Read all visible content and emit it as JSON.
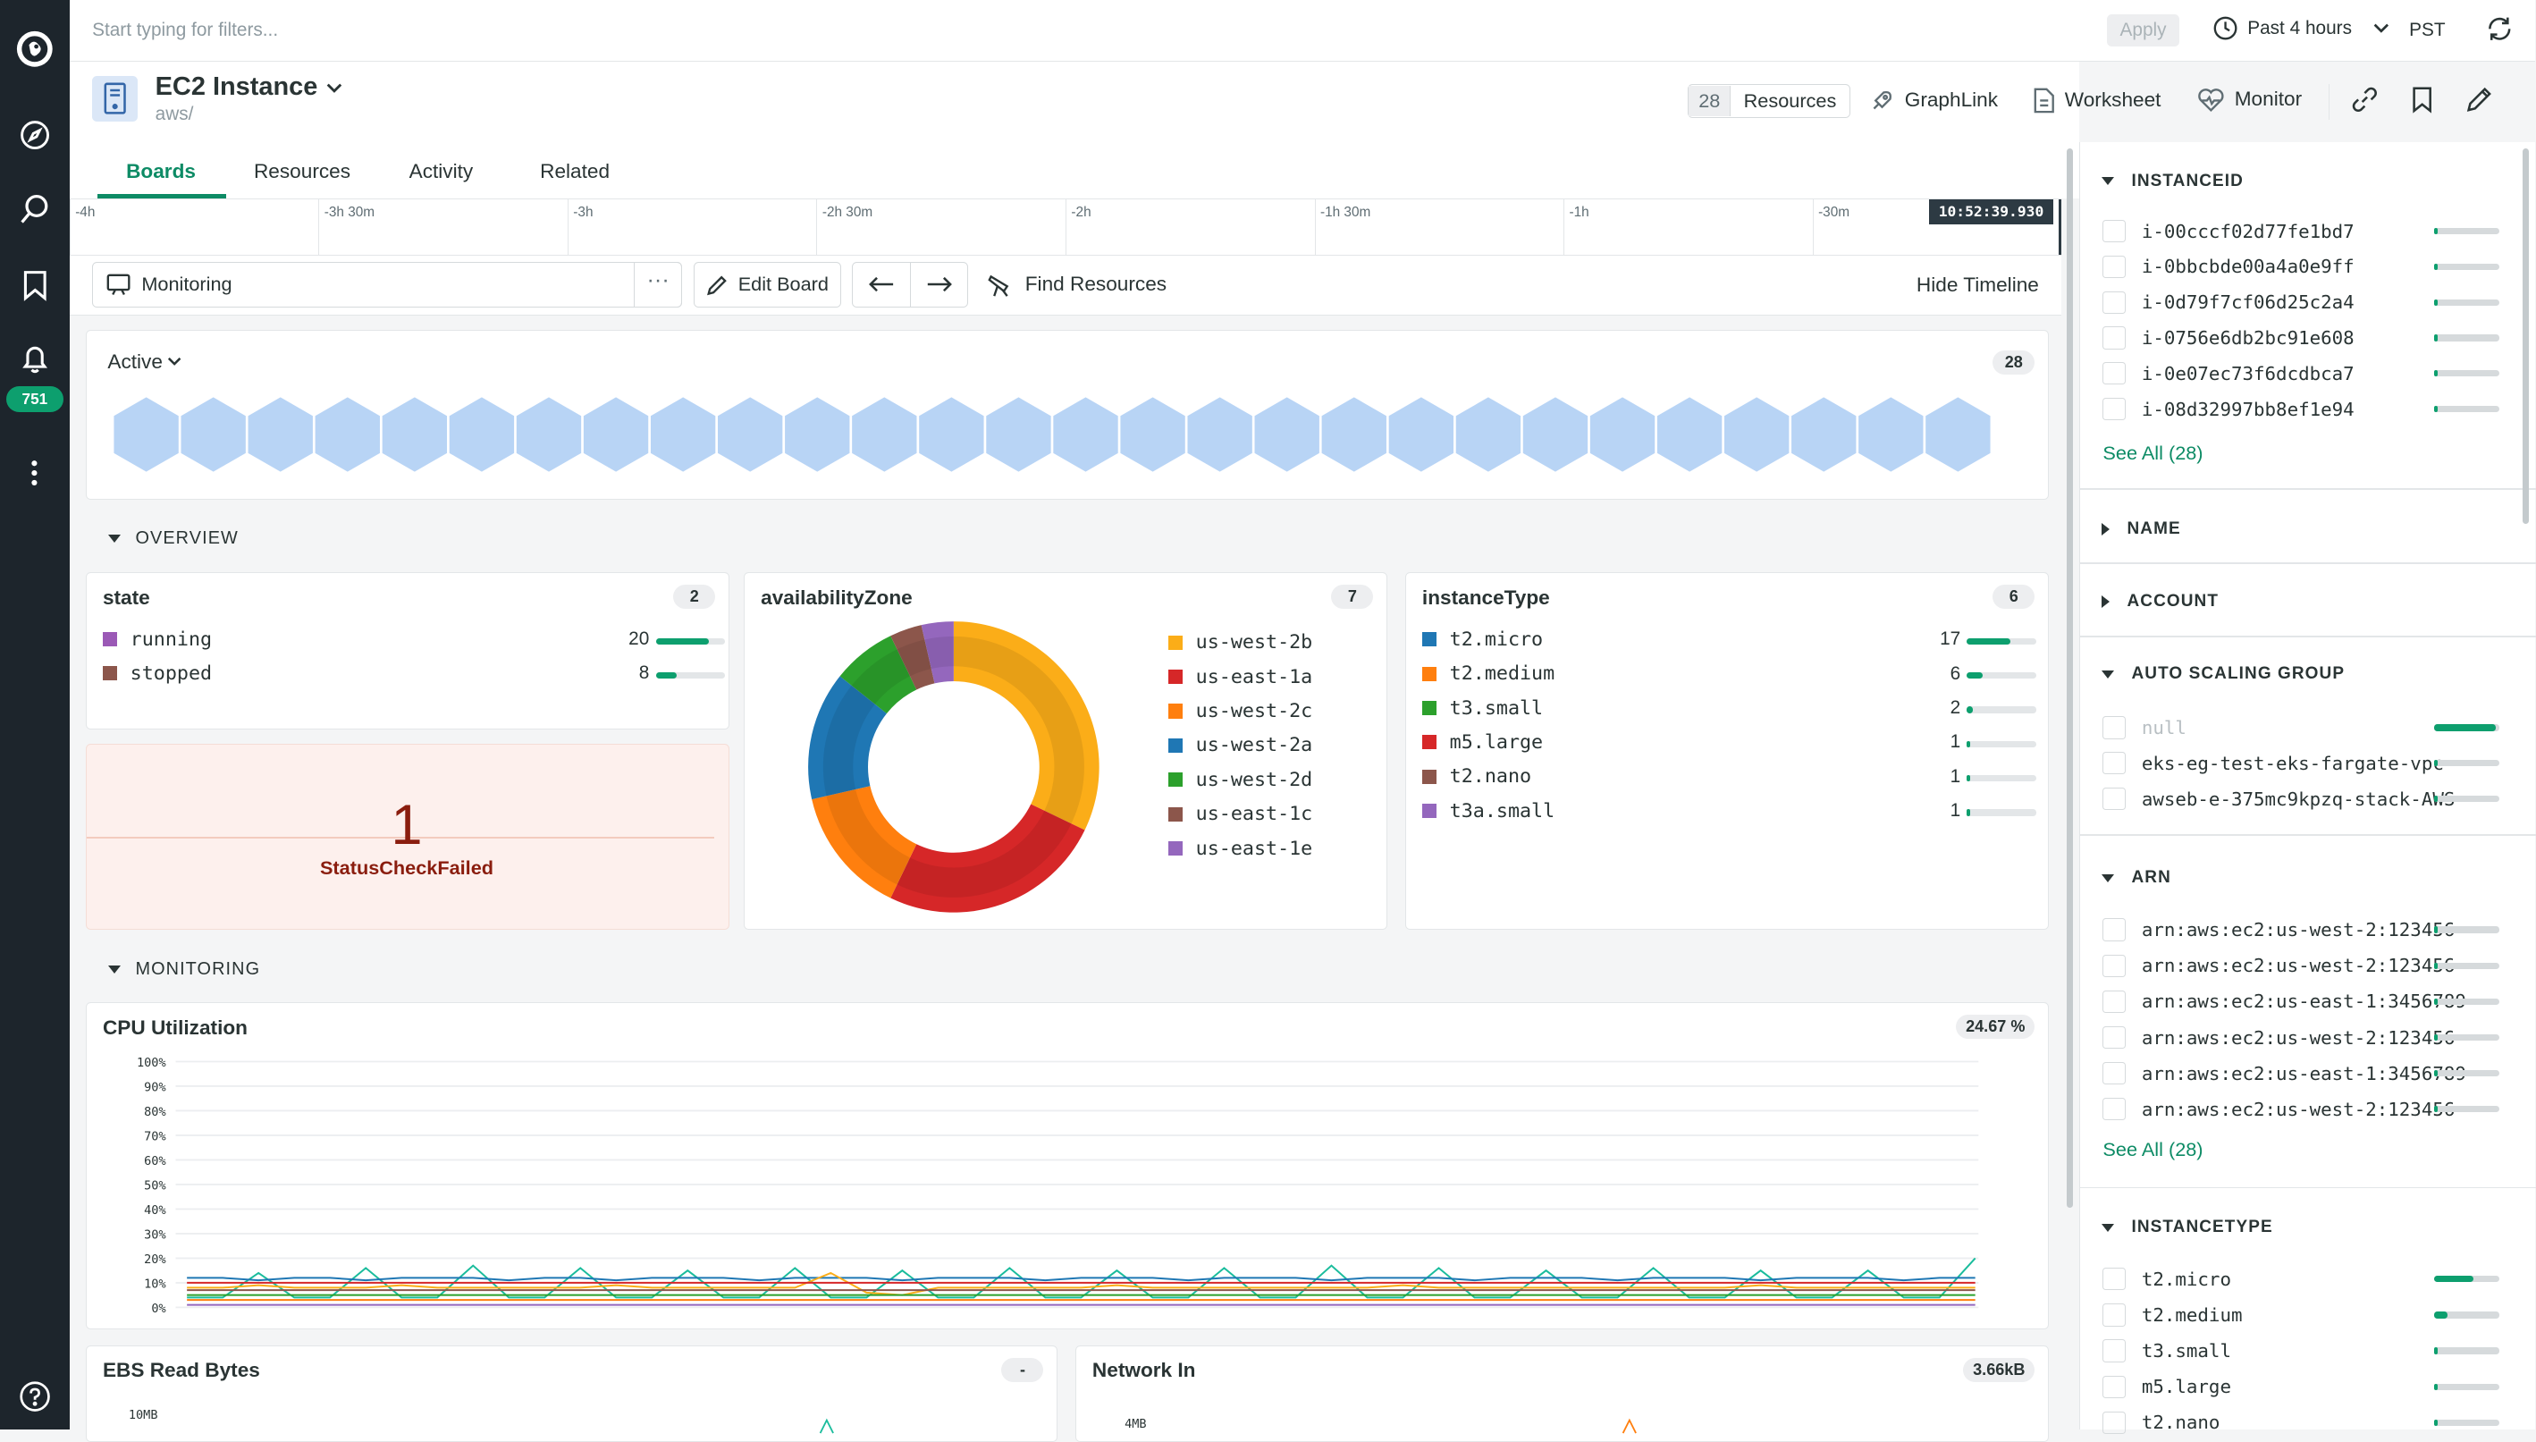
{
  "app": {
    "badge_count": "751",
    "colors": {
      "accent": "#0d8b65",
      "nav_bg": "#1d252c",
      "status_failed_bg": "#fdf0ed",
      "status_failed_text": "#8a1d0e"
    }
  },
  "topbar": {
    "filter_placeholder": "Start typing for filters...",
    "apply": "Apply",
    "time_range": "Past 4 hours",
    "timezone": "PST"
  },
  "entity": {
    "title": "EC2 Instance",
    "subtitle": "aws/",
    "resources_count": "28",
    "resources_label": "Resources",
    "graphlink": "GraphLink",
    "worksheet": "Worksheet",
    "monitor": "Monitor"
  },
  "tabs": [
    "Boards",
    "Resources",
    "Activity",
    "Related"
  ],
  "timeline": {
    "ticks": [
      "-4h",
      "-3h 30m",
      "-3h",
      "-2h 30m",
      "-2h",
      "-1h 30m",
      "-1h",
      "-30m"
    ],
    "now": "10:52:39.930"
  },
  "toolbar": {
    "board": "Monitoring",
    "edit": "Edit Board",
    "find": "Find Resources",
    "hide_timeline": "Hide Timeline"
  },
  "active": {
    "label": "Active",
    "count": "28",
    "hex_count": 28
  },
  "overview": {
    "label": "OVERVIEW",
    "state": {
      "title": "state",
      "count": "2",
      "items": [
        {
          "name": "running",
          "value": "20",
          "frac": 0.77,
          "color": "#9b59b6"
        },
        {
          "name": "stopped",
          "value": "8",
          "frac": 0.3,
          "color": "#8c564b"
        }
      ]
    },
    "status": {
      "value": "1",
      "label": "StatusCheckFailed"
    },
    "az": {
      "title": "availabilityZone",
      "count": "7",
      "items": [
        {
          "name": "us-west-2b",
          "color": "#fbad18"
        },
        {
          "name": "us-east-1a",
          "color": "#d62728"
        },
        {
          "name": "us-west-2c",
          "color": "#ff7f0e"
        },
        {
          "name": "us-west-2a",
          "color": "#1f77b4"
        },
        {
          "name": "us-west-2d",
          "color": "#2ca02c"
        },
        {
          "name": "us-east-1c",
          "color": "#8c564b"
        },
        {
          "name": "us-east-1e",
          "color": "#9467bd"
        }
      ]
    },
    "itype": {
      "title": "instanceType",
      "count": "6",
      "items": [
        {
          "name": "t2.micro",
          "value": "17",
          "frac": 0.62,
          "color": "#1f77b4"
        },
        {
          "name": "t2.medium",
          "value": "6",
          "frac": 0.22,
          "color": "#ff7f0e"
        },
        {
          "name": "t3.small",
          "value": "2",
          "frac": 0.08,
          "color": "#2ca02c"
        },
        {
          "name": "m5.large",
          "value": "1",
          "frac": 0.04,
          "color": "#d62728"
        },
        {
          "name": "t2.nano",
          "value": "1",
          "frac": 0.04,
          "color": "#8c564b"
        },
        {
          "name": "t3a.small",
          "value": "1",
          "frac": 0.04,
          "color": "#9467bd"
        }
      ]
    }
  },
  "monitoring": {
    "label": "MONITORING",
    "cpu": {
      "title": "CPU Utilization",
      "value": "24.67 %",
      "yticks": [
        "100%",
        "90%",
        "80%",
        "70%",
        "60%",
        "50%",
        "40%",
        "30%",
        "20%",
        "10%",
        "0%"
      ]
    },
    "ebs": {
      "title": "EBS Read Bytes",
      "value": "-",
      "ytick": "10MB"
    },
    "net": {
      "title": "Network In",
      "value": "3.66kB",
      "ytick": "4MB"
    }
  },
  "chart_data": [
    {
      "type": "pie",
      "title": "availabilityZone",
      "labels": [
        "us-west-2b",
        "us-east-1a",
        "us-west-2c",
        "us-west-2a",
        "us-west-2d",
        "us-east-1c",
        "us-east-1e"
      ],
      "values": [
        9,
        7,
        4,
        4,
        2,
        1,
        1
      ],
      "legend": "right"
    },
    {
      "type": "line",
      "title": "CPU Utilization",
      "ylim": [
        0,
        100
      ],
      "yunit": "%",
      "grid": true,
      "series": [
        {
          "values": [
            4,
            4,
            14,
            4,
            4,
            16,
            4,
            4,
            17,
            4,
            4,
            16,
            4,
            4,
            15,
            4,
            4,
            16,
            4,
            4,
            15,
            4,
            4,
            16,
            4,
            4,
            15,
            4,
            4,
            16,
            4,
            4,
            17,
            4,
            4,
            16,
            4,
            4,
            15,
            4,
            4,
            16,
            4,
            4,
            15,
            4,
            4,
            15,
            4,
            4,
            20
          ],
          "color": "#1abc9c"
        },
        {
          "values": [
            12,
            12,
            11,
            12,
            12,
            11,
            12,
            12,
            12,
            11,
            12,
            12,
            11,
            12,
            12,
            12,
            11,
            12,
            12,
            12,
            11,
            12,
            12,
            12,
            11,
            12,
            12,
            12,
            11,
            12,
            12,
            12,
            11,
            12,
            12,
            12,
            11,
            12,
            12,
            12,
            11,
            12,
            12,
            12,
            11,
            12,
            12,
            12,
            11,
            12,
            12
          ],
          "color": "#1f77b4"
        },
        {
          "values": [
            8,
            8,
            9,
            8,
            8,
            8,
            9,
            8,
            8,
            8,
            8,
            8,
            9,
            8,
            8,
            8,
            8,
            8,
            14,
            6,
            5,
            8,
            8,
            8,
            8,
            8,
            9,
            8,
            8,
            8,
            8,
            8,
            8,
            8,
            9,
            8,
            8,
            8,
            8,
            8,
            8,
            8,
            8,
            8,
            9,
            8,
            8,
            8,
            8,
            8,
            8
          ],
          "color": "#fbad18"
        },
        {
          "values": [
            10,
            10,
            10,
            10,
            10,
            10,
            10,
            10,
            10,
            10,
            10,
            10,
            10,
            10,
            10,
            10,
            10,
            10,
            10,
            10,
            10,
            10,
            10,
            10,
            10,
            10,
            10,
            10,
            10,
            10,
            10,
            10,
            10,
            10,
            10,
            10,
            10,
            10,
            10,
            10,
            10,
            10,
            10,
            10,
            10,
            10,
            10,
            10,
            10,
            10,
            10
          ],
          "color": "#d62728"
        },
        {
          "values": [
            7,
            7,
            7,
            7,
            7,
            7,
            7,
            7,
            7,
            7,
            7,
            7,
            7,
            7,
            7,
            7,
            7,
            7,
            7,
            7,
            7,
            7,
            7,
            7,
            7,
            7,
            7,
            7,
            7,
            7,
            7,
            7,
            7,
            7,
            7,
            7,
            7,
            7,
            7,
            7,
            7,
            7,
            7,
            7,
            7,
            7,
            7,
            7,
            7,
            7,
            7
          ],
          "color": "#8c564b"
        },
        {
          "values": [
            5,
            5,
            5,
            5,
            5,
            5,
            5,
            5,
            5,
            5,
            5,
            5,
            5,
            5,
            5,
            5,
            5,
            5,
            5,
            5,
            5,
            5,
            5,
            5,
            5,
            5,
            5,
            5,
            5,
            5,
            5,
            5,
            5,
            5,
            5,
            5,
            5,
            5,
            5,
            5,
            5,
            5,
            5,
            5,
            5,
            5,
            5,
            5,
            5,
            5,
            5
          ],
          "color": "#2ca02c"
        },
        {
          "values": [
            3,
            3,
            3,
            3,
            3,
            3,
            3,
            3,
            3,
            3,
            3,
            3,
            3,
            3,
            3,
            3,
            3,
            3,
            3,
            3,
            3,
            3,
            3,
            3,
            3,
            3,
            3,
            3,
            3,
            3,
            3,
            3,
            3,
            3,
            3,
            3,
            3,
            3,
            3,
            3,
            3,
            3,
            3,
            3,
            3,
            3,
            3,
            3,
            3,
            3,
            3
          ],
          "color": "#ff7f0e"
        },
        {
          "values": [
            1,
            1,
            1,
            1,
            1,
            1,
            1,
            1,
            1,
            1,
            1,
            1,
            1,
            1,
            1,
            1,
            1,
            1,
            1,
            1,
            1,
            1,
            1,
            1,
            1,
            1,
            1,
            1,
            1,
            1,
            1,
            1,
            1,
            1,
            1,
            1,
            1,
            1,
            1,
            1,
            1,
            1,
            1,
            1,
            1,
            1,
            1,
            1,
            1,
            1,
            1
          ],
          "color": "#9467bd"
        }
      ]
    }
  ],
  "sidebar": {
    "instanceid": {
      "label": "INSTANCEID",
      "items": [
        {
          "name": "i-00cccf02d77fe1bd7",
          "frac": 0.05
        },
        {
          "name": "i-0bbcbde00a4a0e9ff",
          "frac": 0.05
        },
        {
          "name": "i-0d79f7cf06d25c2a4",
          "frac": 0.05
        },
        {
          "name": "i-0756e6db2bc91e608",
          "frac": 0.05
        },
        {
          "name": "i-0e07ec73f6dcdbca7",
          "frac": 0.05
        },
        {
          "name": "i-08d32997bb8ef1e94",
          "frac": 0.05
        }
      ],
      "see_all": "See All (28)"
    },
    "name": {
      "label": "NAME"
    },
    "account": {
      "label": "ACCOUNT"
    },
    "asg": {
      "label": "AUTO SCALING GROUP",
      "items": [
        {
          "name": "null",
          "frac": 0.95
        },
        {
          "name": "eks-eg-test-eks-fargate-vpc-",
          "frac": 0.05
        },
        {
          "name": "awseb-e-375mc9kpzq-stack-AWS",
          "frac": 0.05
        }
      ]
    },
    "arn": {
      "label": "ARN",
      "items": [
        {
          "name": "arn:aws:ec2:us-west-2:123456",
          "frac": 0.05
        },
        {
          "name": "arn:aws:ec2:us-west-2:123456",
          "frac": 0.05
        },
        {
          "name": "arn:aws:ec2:us-east-1:3456789",
          "frac": 0.05
        },
        {
          "name": "arn:aws:ec2:us-west-2:123456",
          "frac": 0.05
        },
        {
          "name": "arn:aws:ec2:us-east-1:3456789",
          "frac": 0.05
        },
        {
          "name": "arn:aws:ec2:us-west-2:123456",
          "frac": 0.05
        }
      ],
      "see_all": "See All (28)"
    },
    "instancetype": {
      "label": "INSTANCETYPE",
      "items": [
        {
          "name": "t2.micro",
          "frac": 0.6
        },
        {
          "name": "t2.medium",
          "frac": 0.2
        },
        {
          "name": "t3.small",
          "frac": 0.05
        },
        {
          "name": "m5.large",
          "frac": 0.05
        },
        {
          "name": "t2.nano",
          "frac": 0.05
        }
      ]
    }
  }
}
